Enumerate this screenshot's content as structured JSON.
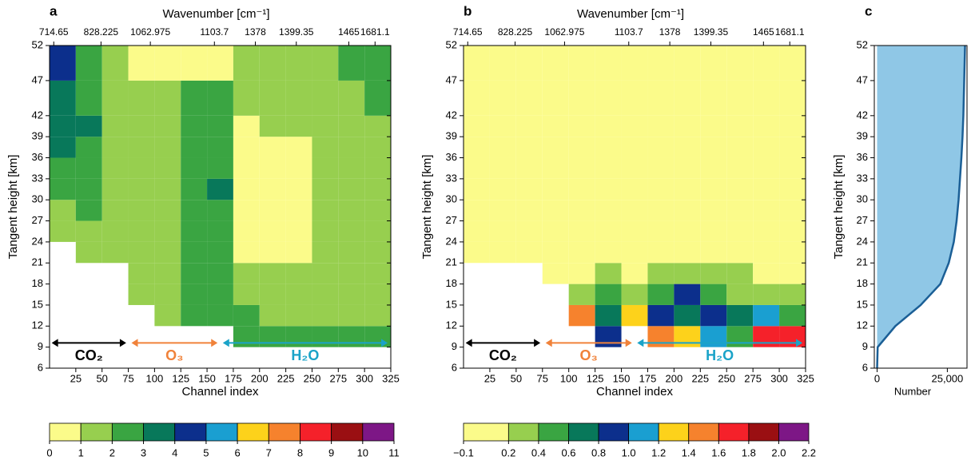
{
  "chart_data": [
    {
      "type": "heatmap",
      "label": "a",
      "x2label": "Wavenumber [cm⁻¹]",
      "xlabel": "Channel index",
      "ylabel": "Tangent height [km]",
      "xlim": [
        0,
        325
      ],
      "ylim": [
        6,
        52
      ],
      "xticks": [
        25,
        50,
        75,
        100,
        125,
        150,
        175,
        200,
        225,
        250,
        275,
        300,
        325
      ],
      "x2ticks": [
        {
          "value": 4,
          "label": "714.65"
        },
        {
          "value": 49,
          "label": "828.225"
        },
        {
          "value": 96,
          "label": "1062.975"
        },
        {
          "value": 157,
          "label": "1103.7"
        },
        {
          "value": 196,
          "label": "1378"
        },
        {
          "value": 235,
          "label": "1399.35"
        },
        {
          "value": 285,
          "label": "1465"
        },
        {
          "value": 310,
          "label": "1681.1"
        }
      ],
      "yticks": [
        6,
        9,
        12,
        15,
        18,
        21,
        24,
        27,
        30,
        33,
        36,
        39,
        42,
        47,
        52
      ],
      "x_edges": [
        0,
        25,
        50,
        75,
        100,
        125,
        150,
        175,
        200,
        225,
        250,
        275,
        300,
        325
      ],
      "y_edges": [
        6,
        9,
        12,
        15,
        18,
        21,
        24,
        27,
        30,
        33,
        36,
        39,
        42,
        47,
        52
      ],
      "z": [
        [
          null,
          null,
          null,
          null,
          null,
          null,
          null,
          null,
          null,
          null,
          null,
          null,
          null
        ],
        [
          null,
          null,
          null,
          null,
          null,
          null,
          null,
          2.5,
          2.5,
          2.5,
          2.5,
          2.5,
          2.5
        ],
        [
          null,
          null,
          null,
          null,
          1.5,
          2.5,
          2.5,
          2.5,
          1.5,
          1.5,
          1.5,
          1.5,
          1.5
        ],
        [
          null,
          null,
          null,
          1.5,
          1.5,
          2.5,
          2.5,
          1.5,
          1.5,
          1.5,
          1.5,
          1.5,
          1.5
        ],
        [
          null,
          null,
          null,
          1.5,
          1.5,
          2.5,
          2.5,
          1.5,
          1.5,
          1.5,
          1.5,
          1.5,
          1.5
        ],
        [
          null,
          1.5,
          1.5,
          1.5,
          1.5,
          2.5,
          2.5,
          0.5,
          0.5,
          0.5,
          1.5,
          1.5,
          1.5
        ],
        [
          1.5,
          1.5,
          1.5,
          1.5,
          1.5,
          2.5,
          2.5,
          0.5,
          0.5,
          0.5,
          1.5,
          1.5,
          1.5
        ],
        [
          1.5,
          2.5,
          1.5,
          1.5,
          1.5,
          2.5,
          2.5,
          0.5,
          0.5,
          0.5,
          1.5,
          1.5,
          1.5
        ],
        [
          2.5,
          2.5,
          1.5,
          1.5,
          1.5,
          2.5,
          3.5,
          0.5,
          0.5,
          0.5,
          1.5,
          1.5,
          1.5
        ],
        [
          2.5,
          2.5,
          1.5,
          1.5,
          1.5,
          2.5,
          2.5,
          0.5,
          0.5,
          0.5,
          1.5,
          1.5,
          1.5
        ],
        [
          3.5,
          2.5,
          1.5,
          1.5,
          1.5,
          2.5,
          2.5,
          0.5,
          0.5,
          0.5,
          1.5,
          1.5,
          1.5
        ],
        [
          3.5,
          3.5,
          1.5,
          1.5,
          1.5,
          2.5,
          2.5,
          0.5,
          1.5,
          1.5,
          1.5,
          1.5,
          1.5
        ],
        [
          3.5,
          2.5,
          1.5,
          1.5,
          1.5,
          2.5,
          2.5,
          1.5,
          1.5,
          1.5,
          1.5,
          1.5,
          2.5
        ],
        [
          4.5,
          2.5,
          1.5,
          0.5,
          0.5,
          0.5,
          0.5,
          1.5,
          1.5,
          1.5,
          1.5,
          2.5,
          2.5
        ]
      ],
      "annotations": [
        {
          "text": "CO₂",
          "color": "#000000"
        },
        {
          "text": "O₃",
          "color": "#f0823a"
        },
        {
          "text": "H₂O",
          "color": "#1aa3c8"
        }
      ],
      "colorbar": {
        "ticks": [
          0,
          1,
          2,
          3,
          4,
          5,
          6,
          7,
          8,
          9,
          10,
          11
        ],
        "colors": [
          "#fbfb8a",
          "#97cf4f",
          "#3aa542",
          "#08785a",
          "#0c2f8c",
          "#1a9fd1",
          "#fdd21b",
          "#f6822d",
          "#f5212a",
          "#9a0f12",
          "#7d1786"
        ]
      }
    },
    {
      "type": "heatmap",
      "label": "b",
      "x2label": "Wavenumber [cm⁻¹]",
      "xlabel": "Channel index",
      "ylabel": "Tangent height [km]",
      "xlim": [
        0,
        325
      ],
      "ylim": [
        6,
        52
      ],
      "xticks": [
        25,
        50,
        75,
        100,
        125,
        150,
        175,
        200,
        225,
        250,
        275,
        300,
        325
      ],
      "x2ticks": [
        {
          "value": 4,
          "label": "714.65"
        },
        {
          "value": 49,
          "label": "828.225"
        },
        {
          "value": 96,
          "label": "1062.975"
        },
        {
          "value": 157,
          "label": "1103.7"
        },
        {
          "value": 196,
          "label": "1378"
        },
        {
          "value": 235,
          "label": "1399.35"
        },
        {
          "value": 285,
          "label": "1465"
        },
        {
          "value": 310,
          "label": "1681.1"
        }
      ],
      "yticks": [
        6,
        9,
        12,
        15,
        18,
        21,
        24,
        27,
        30,
        33,
        36,
        39,
        42,
        47,
        52
      ],
      "x_edges": [
        0,
        25,
        50,
        75,
        100,
        125,
        150,
        175,
        200,
        225,
        250,
        275,
        300,
        325
      ],
      "y_edges": [
        6,
        9,
        12,
        15,
        18,
        21,
        24,
        27,
        30,
        33,
        36,
        39,
        42,
        47,
        52
      ],
      "z": [
        [
          null,
          null,
          null,
          null,
          null,
          null,
          null,
          null,
          null,
          null,
          null,
          null,
          null
        ],
        [
          null,
          null,
          null,
          null,
          null,
          0.9,
          null,
          1.5,
          1.3,
          1.1,
          0.5,
          1.7,
          1.7
        ],
        [
          null,
          null,
          null,
          null,
          1.5,
          0.7,
          1.3,
          0.9,
          0.7,
          0.9,
          0.7,
          1.1,
          0.5
        ],
        [
          null,
          null,
          null,
          null,
          0.3,
          0.5,
          0.3,
          0.5,
          0.9,
          0.5,
          0.3,
          0.3,
          0.3
        ],
        [
          null,
          null,
          null,
          0.05,
          0.05,
          0.3,
          0.05,
          0.3,
          0.3,
          0.3,
          0.3,
          0.05,
          0.05
        ],
        [
          0.05,
          0.05,
          0.05,
          0.05,
          0.05,
          0.05,
          0.05,
          0.05,
          0.05,
          0.05,
          0.05,
          0.05,
          0.05
        ],
        [
          0.05,
          0.05,
          0.05,
          0.05,
          0.05,
          0.05,
          0.05,
          0.05,
          0.05,
          0.05,
          0.05,
          0.05,
          0.05
        ],
        [
          0.05,
          0.05,
          0.05,
          0.05,
          0.05,
          0.05,
          0.05,
          0.05,
          0.05,
          0.05,
          0.05,
          0.05,
          0.05
        ],
        [
          0.05,
          0.05,
          0.05,
          0.05,
          0.05,
          0.05,
          0.05,
          0.05,
          0.05,
          0.05,
          0.05,
          0.05,
          0.05
        ],
        [
          0.05,
          0.05,
          0.05,
          0.05,
          0.05,
          0.05,
          0.05,
          0.05,
          0.05,
          0.05,
          0.05,
          0.05,
          0.05
        ],
        [
          0.05,
          0.05,
          0.05,
          0.05,
          0.05,
          0.05,
          0.05,
          0.05,
          0.05,
          0.05,
          0.05,
          0.05,
          0.05
        ],
        [
          0.05,
          0.05,
          0.05,
          0.05,
          0.05,
          0.05,
          0.05,
          0.05,
          0.05,
          0.05,
          0.05,
          0.05,
          0.05
        ],
        [
          0.05,
          0.05,
          0.05,
          0.05,
          0.05,
          0.05,
          0.05,
          0.05,
          0.05,
          0.05,
          0.05,
          0.05,
          0.05
        ],
        [
          0.05,
          0.05,
          0.05,
          0.05,
          0.05,
          0.05,
          0.05,
          0.05,
          0.05,
          0.05,
          0.05,
          0.05,
          0.05
        ]
      ],
      "annotations": [
        {
          "text": "CO₂",
          "color": "#000000"
        },
        {
          "text": "O₃",
          "color": "#f0823a"
        },
        {
          "text": "H₂O",
          "color": "#1aa3c8"
        }
      ],
      "colorbar": {
        "ticks": [
          {
            "value": -0.1,
            "label": "−0.1"
          },
          0.2,
          0.4,
          0.6,
          0.8,
          {
            "value": 1.0,
            "label": "1.0"
          },
          1.2,
          1.4,
          1.6,
          1.8,
          {
            "value": 2.0,
            "label": "2.0"
          },
          2.2
        ],
        "colors": [
          "#fbfb8a",
          "#97cf4f",
          "#3aa542",
          "#08785a",
          "#0c2f8c",
          "#1a9fd1",
          "#fdd21b",
          "#f6822d",
          "#f5212a",
          "#9a0f12",
          "#7d1786"
        ]
      }
    },
    {
      "type": "area",
      "label": "c",
      "xlabel": "Number",
      "ylabel": "Tangent height [km]",
      "xlim": [
        -1000,
        32000
      ],
      "ylim": [
        6,
        52
      ],
      "xticks": [
        0,
        {
          "value": 25000,
          "label": "25,000"
        }
      ],
      "yticks": [
        6,
        9,
        12,
        15,
        18,
        21,
        24,
        27,
        30,
        33,
        36,
        39,
        42,
        47,
        52
      ],
      "heights": [
        6,
        9,
        12,
        15,
        18,
        21,
        24,
        27,
        30,
        33,
        36,
        39,
        42,
        47,
        52
      ],
      "values": [
        0,
        200,
        6500,
        15500,
        22500,
        25500,
        27300,
        28300,
        29000,
        29500,
        30000,
        30400,
        30700,
        31000,
        31300
      ],
      "color": "#1b5f96",
      "fill": "#8fc7e6"
    }
  ]
}
